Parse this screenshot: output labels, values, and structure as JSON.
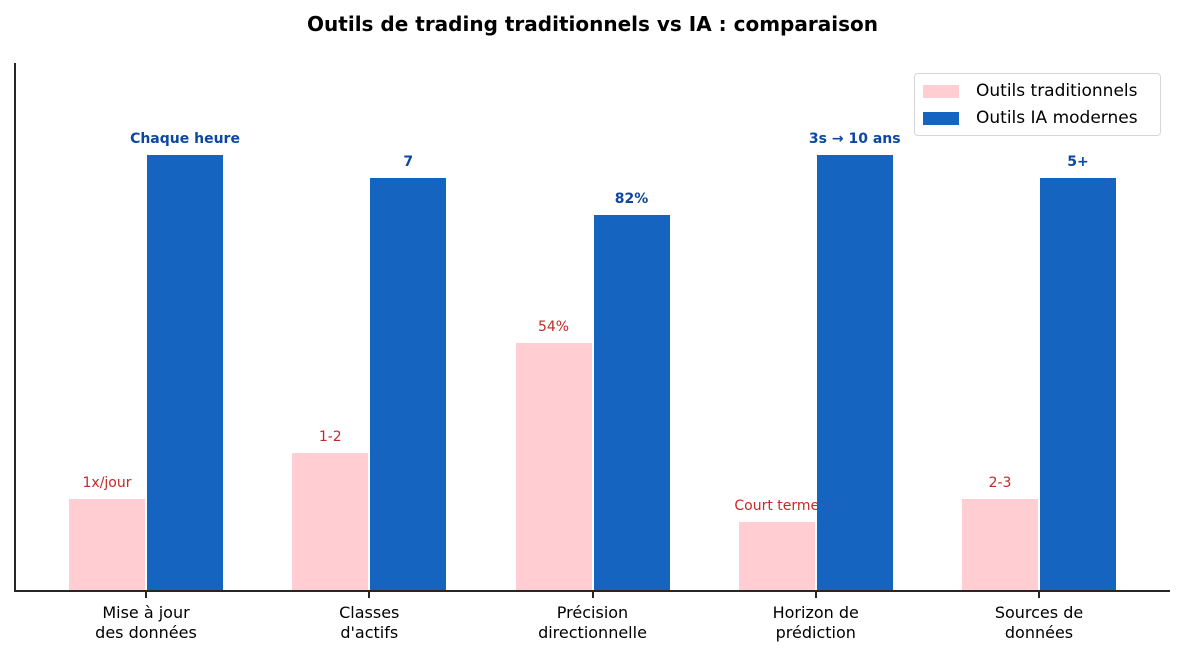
{
  "chart_data": {
    "type": "bar",
    "title": "Outils de trading traditionnels vs IA : comparaison",
    "xlabel": "",
    "ylabel": "",
    "ylim": [
      0,
      115
    ],
    "grid": false,
    "legend_position": "upper right",
    "categories": [
      "Mise à jour\ndes données",
      "Classes\nd'actifs",
      "Précision\ndirectionnelle",
      "Horizon de\nprédiction",
      "Sources de\ndonnées"
    ],
    "series": [
      {
        "name": "Outils traditionnels",
        "color": "#ffcdd2",
        "label_color": "#c62828",
        "values": [
          20,
          30,
          54,
          15,
          20
        ],
        "labels": [
          "1x/jour",
          "1-2",
          "54%",
          "Court terme",
          "2-3"
        ]
      },
      {
        "name": "Outils IA modernes",
        "color": "#1565c0",
        "label_color": "#0d47a1",
        "values": [
          95,
          90,
          82,
          95,
          90
        ],
        "labels": [
          "Chaque heure",
          "7",
          "82%",
          "3s → 10 ans",
          "5+"
        ]
      }
    ]
  },
  "legend": {
    "items": [
      {
        "label": "Outils traditionnels",
        "color": "#ffcdd2"
      },
      {
        "label": "Outils IA modernes",
        "color": "#1565c0"
      }
    ]
  }
}
